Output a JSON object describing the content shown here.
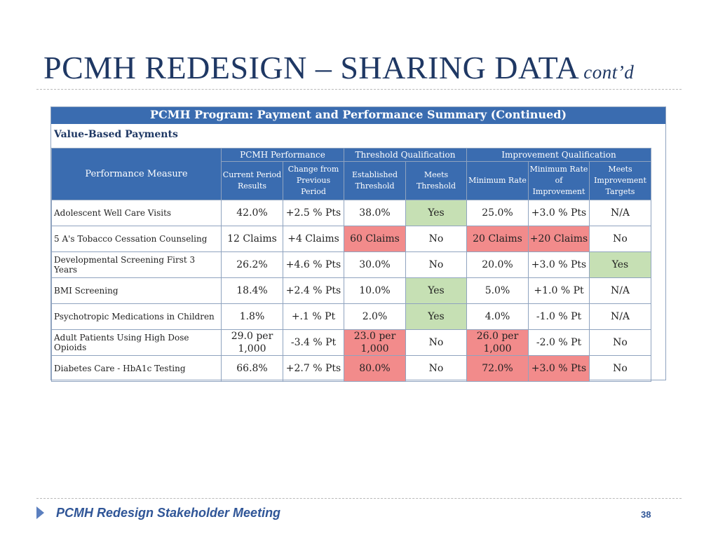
{
  "slide": {
    "title_main": "PCMH REDESIGN – SHARING DATA",
    "title_suffix": "cont’d",
    "table_title": "PCMH Program: Payment and Performance Summary (Continued)",
    "section_title": "Value-Based Payments",
    "footer": "PCMH Redesign Stakeholder Meeting",
    "page_number": "38"
  },
  "table": {
    "measure_header": "Performance Measure",
    "groups": {
      "performance": "PCMH Performance",
      "threshold": "Threshold Qualification",
      "improvement": "Improvement Qualification"
    },
    "subheaders": {
      "current_period": "Current Period Results",
      "change": "Change from Previous Period",
      "established_threshold": "Established Threshold",
      "meets_threshold": "Meets Threshold",
      "minimum_rate": "Minimum Rate",
      "min_rate_improvement": "Minimum Rate of Improvement",
      "meets_targets": "Meets Improvement Targets"
    },
    "highlight_colors": {
      "green": "#c6e0b4",
      "red": "#f28b8b",
      "header": "#3a6cb0"
    },
    "rows": [
      {
        "measure": "Adolescent Well Care Visits",
        "cells": [
          {
            "v": "42.0%",
            "hl": ""
          },
          {
            "v": "+2.5 % Pts",
            "hl": ""
          },
          {
            "v": "38.0%",
            "hl": ""
          },
          {
            "v": "Yes",
            "hl": "green"
          },
          {
            "v": "25.0%",
            "hl": ""
          },
          {
            "v": "+3.0 % Pts",
            "hl": ""
          },
          {
            "v": "N/A",
            "hl": ""
          }
        ]
      },
      {
        "measure": "5 A's Tobacco Cessation Counseling",
        "cells": [
          {
            "v": "12 Claims",
            "hl": ""
          },
          {
            "v": "+4 Claims",
            "hl": ""
          },
          {
            "v": "60 Claims",
            "hl": "red"
          },
          {
            "v": "No",
            "hl": ""
          },
          {
            "v": "20 Claims",
            "hl": "red"
          },
          {
            "v": "+20 Claims",
            "hl": "red"
          },
          {
            "v": "No",
            "hl": ""
          }
        ]
      },
      {
        "measure": "Developmental Screening First 3 Years",
        "cells": [
          {
            "v": "26.2%",
            "hl": ""
          },
          {
            "v": "+4.6 % Pts",
            "hl": ""
          },
          {
            "v": "30.0%",
            "hl": ""
          },
          {
            "v": "No",
            "hl": ""
          },
          {
            "v": "20.0%",
            "hl": ""
          },
          {
            "v": "+3.0 % Pts",
            "hl": ""
          },
          {
            "v": "Yes",
            "hl": "green"
          }
        ]
      },
      {
        "measure": "BMI Screening",
        "cells": [
          {
            "v": "18.4%",
            "hl": ""
          },
          {
            "v": "+2.4 % Pts",
            "hl": ""
          },
          {
            "v": "10.0%",
            "hl": ""
          },
          {
            "v": "Yes",
            "hl": "green"
          },
          {
            "v": "5.0%",
            "hl": ""
          },
          {
            "v": "+1.0 % Pt",
            "hl": ""
          },
          {
            "v": "N/A",
            "hl": ""
          }
        ]
      },
      {
        "measure": "Psychotropic Medications in Children",
        "cells": [
          {
            "v": "1.8%",
            "hl": ""
          },
          {
            "v": "+.1 % Pt",
            "hl": ""
          },
          {
            "v": "2.0%",
            "hl": ""
          },
          {
            "v": "Yes",
            "hl": "green"
          },
          {
            "v": "4.0%",
            "hl": ""
          },
          {
            "v": "-1.0 % Pt",
            "hl": ""
          },
          {
            "v": "N/A",
            "hl": ""
          }
        ]
      },
      {
        "measure": "Adult Patients Using High Dose Opioids",
        "cells": [
          {
            "v": "29.0 per 1,000",
            "hl": ""
          },
          {
            "v": "-3.4 % Pt",
            "hl": ""
          },
          {
            "v": "23.0 per 1,000",
            "hl": "red"
          },
          {
            "v": "No",
            "hl": ""
          },
          {
            "v": "26.0 per 1,000",
            "hl": "red"
          },
          {
            "v": "-2.0 % Pt",
            "hl": ""
          },
          {
            "v": "No",
            "hl": ""
          }
        ]
      },
      {
        "measure": "Diabetes Care - HbA1c Testing",
        "cells": [
          {
            "v": "66.8%",
            "hl": ""
          },
          {
            "v": "+2.7 % Pts",
            "hl": ""
          },
          {
            "v": "80.0%",
            "hl": "red"
          },
          {
            "v": "No",
            "hl": ""
          },
          {
            "v": "72.0%",
            "hl": "red"
          },
          {
            "v": "+3.0 % Pts",
            "hl": "red"
          },
          {
            "v": "No",
            "hl": ""
          }
        ]
      }
    ]
  }
}
